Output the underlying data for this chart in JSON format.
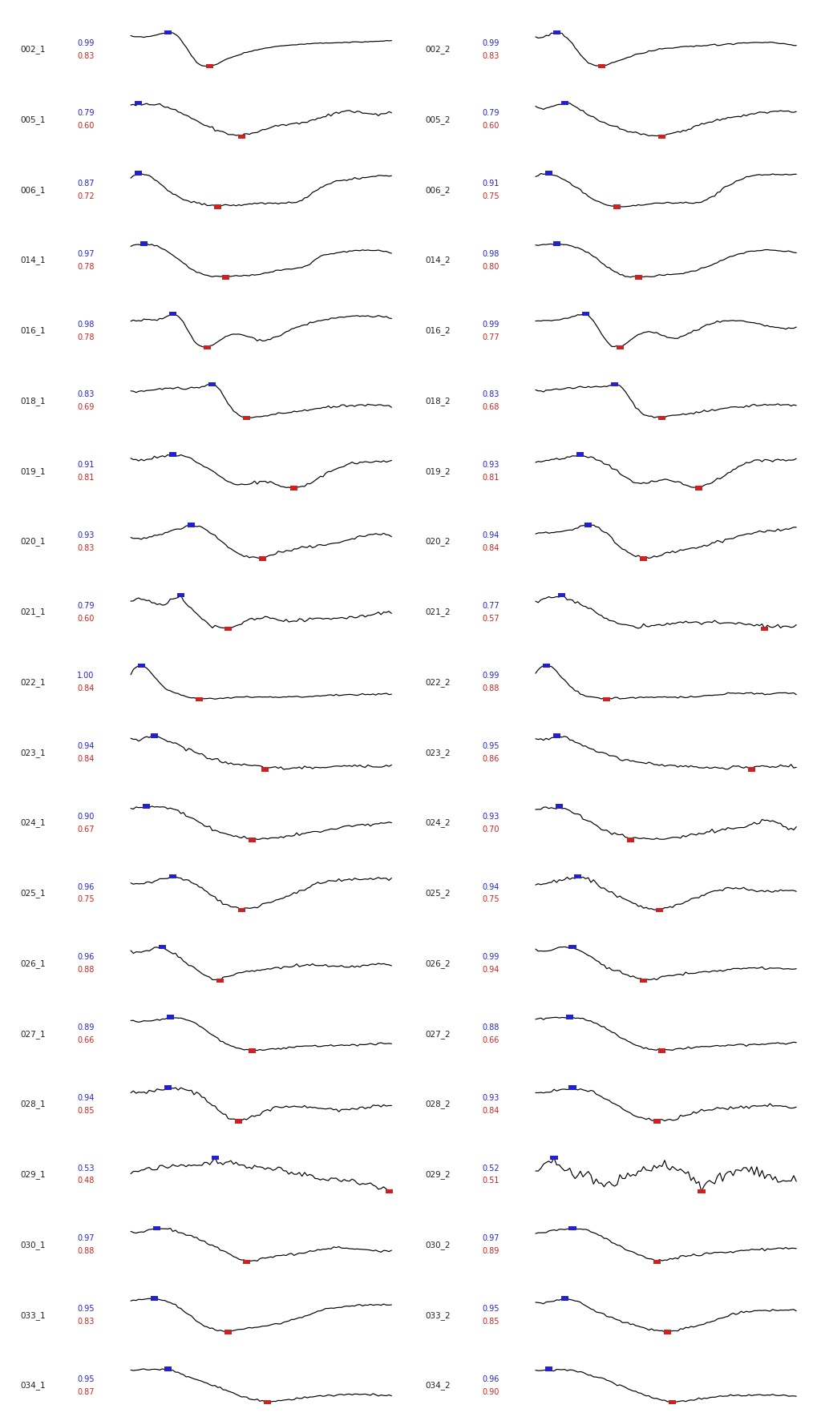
{
  "entries": [
    [
      "002_1",
      "0.99",
      "0.83",
      "002_2",
      "0.99",
      "0.83"
    ],
    [
      "005_1",
      "0.79",
      "0.60",
      "005_2",
      "0.79",
      "0.60"
    ],
    [
      "006_1",
      "0.87",
      "0.72",
      "006_2",
      "0.91",
      "0.75"
    ],
    [
      "014_1",
      "0.97",
      "0.78",
      "014_2",
      "0.98",
      "0.80"
    ],
    [
      "016_1",
      "0.98",
      "0.78",
      "016_2",
      "0.99",
      "0.77"
    ],
    [
      "018_1",
      "0.83",
      "0.69",
      "018_2",
      "0.83",
      "0.68"
    ],
    [
      "019_1",
      "0.91",
      "0.81",
      "019_2",
      "0.93",
      "0.81"
    ],
    [
      "020_1",
      "0.93",
      "0.83",
      "020_2",
      "0.94",
      "0.84"
    ],
    [
      "021_1",
      "0.79",
      "0.60",
      "021_2",
      "0.77",
      "0.57"
    ],
    [
      "022_1",
      "1.00",
      "0.84",
      "022_2",
      "0.99",
      "0.88"
    ],
    [
      "023_1",
      "0.94",
      "0.84",
      "023_2",
      "0.95",
      "0.86"
    ],
    [
      "024_1",
      "0.90",
      "0.67",
      "024_2",
      "0.93",
      "0.70"
    ],
    [
      "025_1",
      "0.96",
      "0.75",
      "025_2",
      "0.94",
      "0.75"
    ],
    [
      "026_1",
      "0.96",
      "0.88",
      "026_2",
      "0.99",
      "0.94"
    ],
    [
      "027_1",
      "0.89",
      "0.66",
      "027_2",
      "0.88",
      "0.66"
    ],
    [
      "028_1",
      "0.94",
      "0.85",
      "028_2",
      "0.93",
      "0.84"
    ],
    [
      "029_1",
      "0.53",
      "0.48",
      "029_2",
      "0.52",
      "0.51"
    ],
    [
      "030_1",
      "0.97",
      "0.88",
      "030_2",
      "0.97",
      "0.89"
    ],
    [
      "033_1",
      "0.95",
      "0.83",
      "033_2",
      "0.95",
      "0.85"
    ],
    [
      "034_1",
      "0.95",
      "0.87",
      "034_2",
      "0.96",
      "0.90"
    ]
  ],
  "bg_color": "#ffffff",
  "line_color": "#000000",
  "blue_color": "#2222cc",
  "red_color": "#cc2222",
  "label_color": "#222222"
}
